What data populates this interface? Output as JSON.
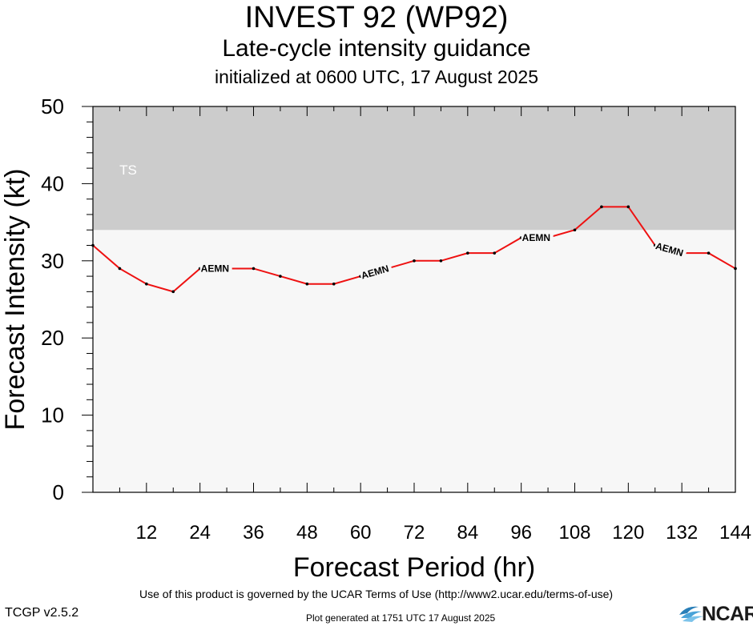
{
  "title": "INVEST 92 (WP92)",
  "subtitle": "Late-cycle intensity guidance",
  "init_line": "initialized at 0600 UTC, 17 August 2025",
  "footer": {
    "terms": "Use of this product is governed by the UCAR Terms of Use (http://www2.ucar.edu/terms-of-use)",
    "version": "TCGP v2.5.2",
    "generated": "Plot generated at 1751 UTC   17 August 2025",
    "logo_text": "NCAR"
  },
  "colors": {
    "series": "#ee1111",
    "ts_band": "#cccccc",
    "plot_bg": "#f7f7f7",
    "ts_label": "#ffffff"
  },
  "chart_data": {
    "type": "line",
    "xlabel": "Forecast Period (hr)",
    "ylabel": "Forecast Intensity (kt)",
    "xlim": [
      0,
      144
    ],
    "ylim": [
      0,
      50
    ],
    "xticks": [
      12,
      24,
      36,
      48,
      60,
      72,
      84,
      96,
      108,
      120,
      132,
      144
    ],
    "yticks": [
      0,
      10,
      20,
      30,
      40,
      50
    ],
    "grid": false,
    "bands": [
      {
        "label": "TS",
        "from": 34,
        "to": 50
      }
    ],
    "series": [
      {
        "name": "AEMN",
        "x": [
          0,
          6,
          12,
          18,
          24,
          30,
          36,
          42,
          48,
          54,
          60,
          66,
          72,
          78,
          84,
          90,
          96,
          102,
          108,
          114,
          120,
          126,
          132,
          138,
          144
        ],
        "y": [
          32,
          29,
          27,
          26,
          29,
          29,
          29,
          28,
          27,
          27,
          28,
          29,
          30,
          30,
          31,
          31,
          33,
          33,
          34,
          37,
          37,
          32,
          31,
          31,
          29
        ],
        "label_at_x": [
          24,
          60,
          96,
          126
        ]
      }
    ]
  }
}
